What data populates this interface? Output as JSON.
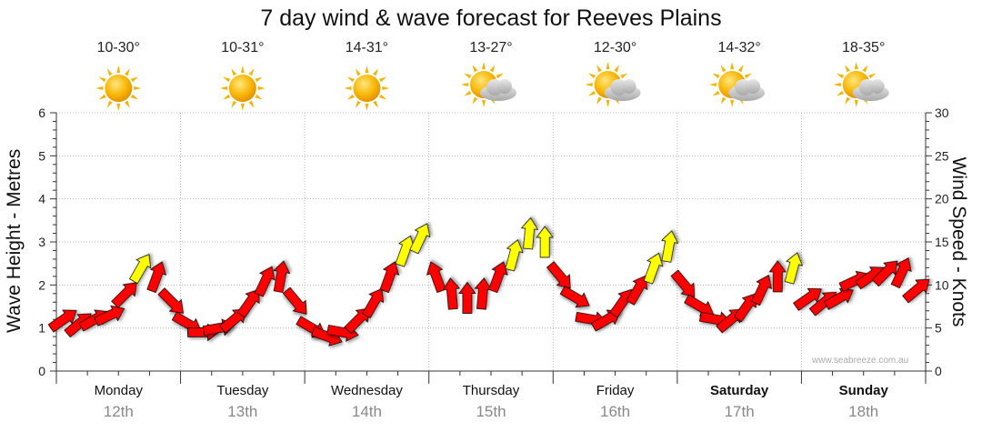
{
  "chart_data": {
    "type": "line",
    "title": "7 day wind & wave forecast for Reeves Plains",
    "ylabel_left": "Wave Height - Metres",
    "ylabel_right": "Wind Speed - Knots",
    "ylim_left": [
      0,
      6
    ],
    "ylim_right": [
      0,
      30
    ],
    "yticks_left": [
      "0",
      "1",
      "2",
      "3",
      "4",
      "5",
      "6"
    ],
    "yticks_right": [
      "0",
      "5",
      "10",
      "15",
      "20",
      "25",
      "30"
    ],
    "grid": true,
    "days": [
      {
        "name": "Monday",
        "date": "12th",
        "temp": "10-30°",
        "icon": "sun-icon",
        "bold": false
      },
      {
        "name": "Tuesday",
        "date": "13th",
        "temp": "10-31°",
        "icon": "sun-icon",
        "bold": false
      },
      {
        "name": "Wednesday",
        "date": "14th",
        "temp": "14-31°",
        "icon": "sun-icon",
        "bold": false
      },
      {
        "name": "Thursday",
        "date": "15th",
        "temp": "13-27°",
        "icon": "partly-cloudy-icon",
        "bold": false
      },
      {
        "name": "Friday",
        "date": "16th",
        "temp": "12-30°",
        "icon": "partly-cloudy-icon",
        "bold": false
      },
      {
        "name": "Saturday",
        "date": "17th",
        "temp": "14-32°",
        "icon": "partly-cloudy-icon",
        "bold": true
      },
      {
        "name": "Sunday",
        "date": "18th",
        "temp": "18-35°",
        "icon": "partly-cloudy-icon",
        "bold": true
      }
    ],
    "wind_series": {
      "name": "",
      "colors": {
        "light": "#ff0000",
        "strong": "#ffff00"
      },
      "hours": [
        0,
        3,
        6,
        9,
        12,
        15,
        18,
        21,
        24,
        27,
        30,
        33,
        36,
        39,
        42,
        45,
        48,
        51,
        54,
        57,
        60,
        63,
        66,
        69,
        72,
        75,
        78,
        81,
        84,
        87,
        90,
        93,
        96,
        99,
        102,
        105,
        108,
        111,
        114,
        117,
        120,
        123,
        126,
        129,
        132,
        135,
        138,
        141,
        144,
        147,
        150,
        153,
        156,
        159,
        162,
        165
      ],
      "knots": [
        6,
        5.5,
        6,
        6.5,
        9,
        12,
        11,
        8,
        5.5,
        4.5,
        5,
        6,
        8,
        10.5,
        11,
        8,
        5,
        4,
        4.5,
        6,
        8,
        11,
        14,
        15.5,
        11,
        9,
        8.5,
        9,
        11,
        13.5,
        16,
        15,
        11,
        8.5,
        6,
        6,
        8,
        9.5,
        12,
        14.5,
        10,
        7.5,
        6,
        6,
        7.5,
        9.5,
        11,
        12,
        8.5,
        8,
        8.5,
        10.5,
        11,
        11.5,
        11.5,
        9.5
      ],
      "direction_deg": [
        235,
        230,
        240,
        245,
        225,
        210,
        200,
        315,
        300,
        270,
        260,
        230,
        215,
        205,
        190,
        320,
        300,
        290,
        280,
        225,
        210,
        200,
        200,
        205,
        160,
        175,
        180,
        185,
        200,
        195,
        185,
        180,
        320,
        300,
        280,
        240,
        215,
        210,
        200,
        190,
        320,
        300,
        280,
        230,
        215,
        205,
        180,
        195,
        235,
        230,
        240,
        245,
        235,
        225,
        205,
        230
      ]
    }
  },
  "credit": "www.seabreeze.com.au"
}
